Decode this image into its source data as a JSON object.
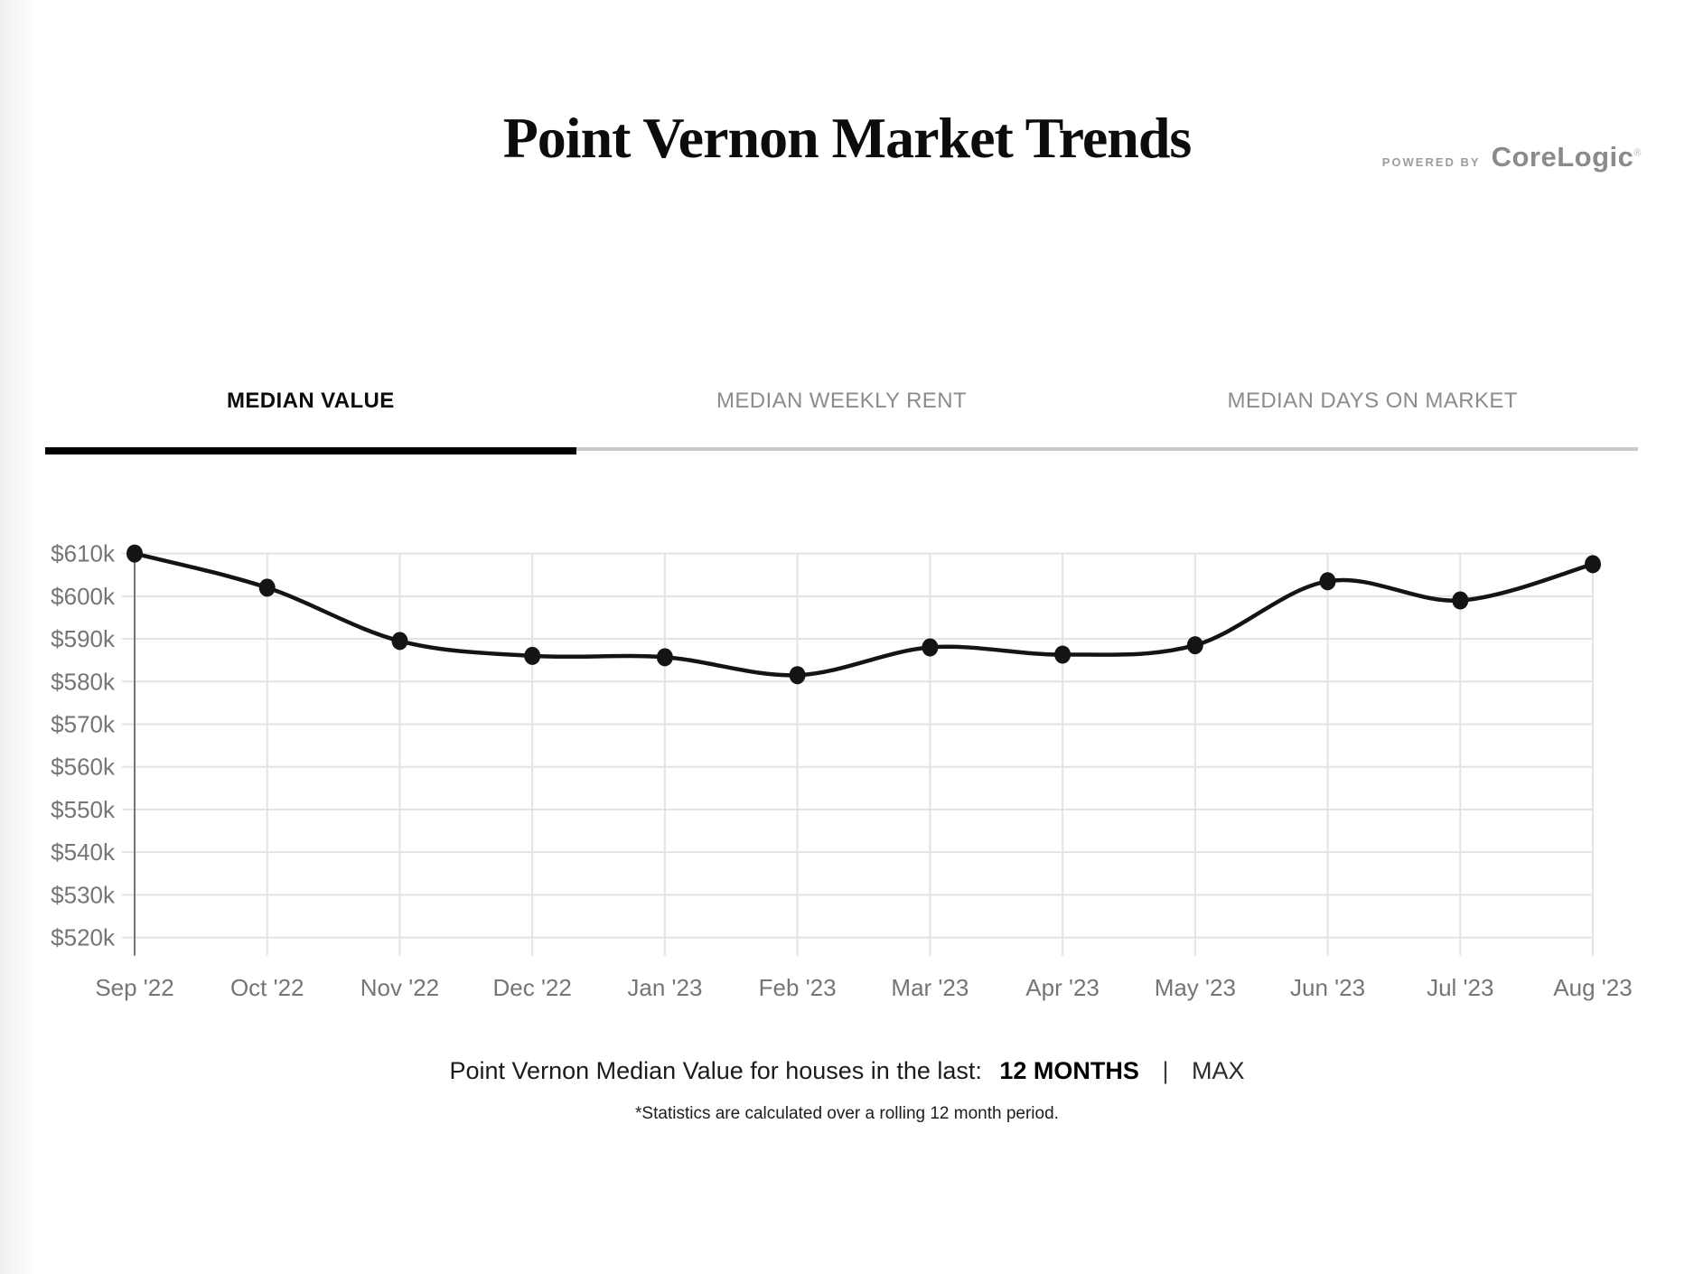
{
  "header": {
    "title": "Point Vernon Market Trends",
    "powered_by_label": "POWERED BY",
    "brand": "CoreLogic",
    "brand_registered_mark": "®"
  },
  "tabs": [
    {
      "label": "MEDIAN VALUE",
      "active": true
    },
    {
      "label": "MEDIAN WEEKLY RENT",
      "active": false
    },
    {
      "label": "MEDIAN DAYS ON MARKET",
      "active": false
    }
  ],
  "chart_data": {
    "type": "line",
    "title": "Point Vernon Median Value",
    "x": [
      "Sep '22",
      "Oct '22",
      "Nov '22",
      "Dec '22",
      "Jan '23",
      "Feb '23",
      "Mar '23",
      "Apr '23",
      "May '23",
      "Jun '23",
      "Jul '23",
      "Aug '23"
    ],
    "series": [
      {
        "name": "Median Value",
        "values": [
          610000,
          602000,
          589500,
          586000,
          585700,
          581500,
          588000,
          586300,
          588500,
          603500,
          599000,
          607500
        ]
      }
    ],
    "ylim": [
      520000,
      610000
    ],
    "ytick_step": 10000,
    "ytick_labels": [
      "$520k",
      "$530k",
      "$540k",
      "$550k",
      "$560k",
      "$570k",
      "$580k",
      "$590k",
      "$600k",
      "$610k"
    ],
    "grid": true,
    "legend": "none",
    "line_color": "#141414",
    "marker_color": "#141414",
    "grid_color": "#e3e3e3",
    "axis_color": "#757575",
    "tick_label_color": "#757575"
  },
  "footer": {
    "caption_prefix": "Point Vernon Median Value for houses in the last:",
    "period_selected": "12 MONTHS",
    "separator": "|",
    "period_alt": "MAX",
    "footnote": "*Statistics are calculated over a rolling 12 month period."
  }
}
